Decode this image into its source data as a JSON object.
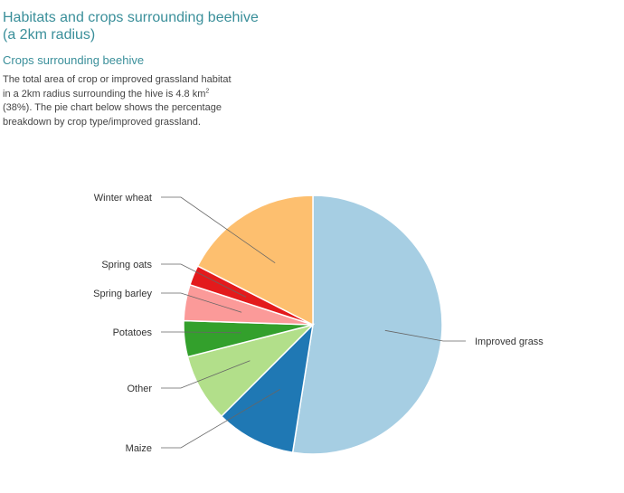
{
  "header": {
    "title": "Habitats and crops surrounding beehive (a 2km radius)",
    "subtitle": "Crops surrounding beehive"
  },
  "description": {
    "part1": "The total area of crop or improved grassland habitat in a 2km radius surrounding the hive is 4.8 km",
    "superscript": "2",
    "part2": " (38%). The pie chart below shows the percentage breakdown by crop type/improved grassland."
  },
  "chart_data": {
    "type": "pie",
    "unit": "percent",
    "slices": [
      {
        "label": "Improved grass",
        "value": 52.5,
        "color": "#a6cee3"
      },
      {
        "label": "Maize",
        "value": 10.0,
        "color": "#1f78b4"
      },
      {
        "label": "Other",
        "value": 8.5,
        "color": "#b2df8a"
      },
      {
        "label": "Potatoes",
        "value": 4.5,
        "color": "#33a02c"
      },
      {
        "label": "Spring barley",
        "value": 4.5,
        "color": "#fb9a99"
      },
      {
        "label": "Spring oats",
        "value": 2.5,
        "color": "#e31a1c"
      },
      {
        "label": "Winter wheat",
        "value": 17.5,
        "color": "#fdbf6f"
      }
    ]
  }
}
